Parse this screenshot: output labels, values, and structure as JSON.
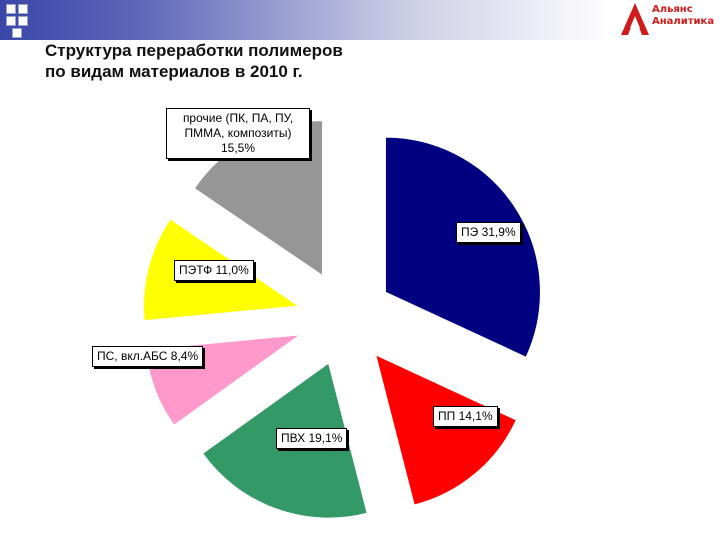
{
  "title_line1": "Структура переработки полимеров",
  "title_line2": "по видам материалов в 2010 г.",
  "logo": {
    "line1": "Альянс",
    "line2": "Аналитика",
    "color": "#d11a1a"
  },
  "chart_data": {
    "type": "pie",
    "exploded": true,
    "slices": [
      {
        "label": "ПЭ 31,9%",
        "value": 31.9,
        "color": "#000080"
      },
      {
        "label": "ПП 14,1%",
        "value": 14.1,
        "color": "#ff0000"
      },
      {
        "label": "ПВХ 19,1%",
        "value": 19.1,
        "color": "#339966"
      },
      {
        "label": "ПС, вкл.АБС 8,4%",
        "value": 8.4,
        "color": "#ff99cc"
      },
      {
        "label": "ПЭТФ 11,0%",
        "value": 11.0,
        "color": "#ffff00"
      },
      {
        "label": "прочие (ПК, ПА, ПУ, ПММА, композиты) 15,5%",
        "value": 15.5,
        "color": "#969696"
      }
    ]
  }
}
